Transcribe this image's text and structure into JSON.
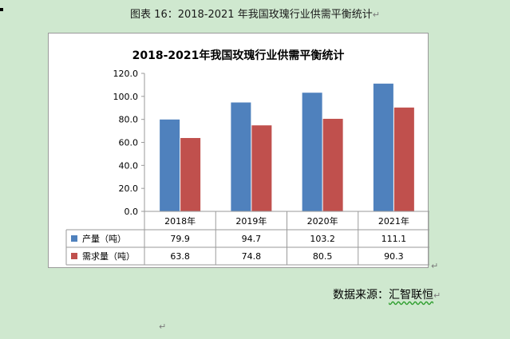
{
  "caption": "图表 16：2018-2021 年我国玫瑰行业供需平衡统计",
  "return_mark": "↵",
  "source_label": "数据来源：",
  "source_name": "汇智联恒",
  "colors": {
    "production": "#4f81bd",
    "demand": "#c0504d",
    "frame": "#9a9a9a"
  },
  "chart_data": {
    "type": "bar",
    "title": "2018-2021年我国玫瑰行业供需平衡统计",
    "categories": [
      "2018年",
      "2019年",
      "2020年",
      "2021年"
    ],
    "series": [
      {
        "name": "产量（吨）",
        "values": [
          79.9,
          94.7,
          103.2,
          111.1
        ],
        "value_labels": [
          "79.9",
          "94.7",
          "103.2",
          "111.1"
        ]
      },
      {
        "name": "需求量（吨）",
        "values": [
          63.8,
          74.8,
          80.5,
          90.3
        ],
        "value_labels": [
          "63.8",
          "74.8",
          "80.5",
          "90.3"
        ]
      }
    ],
    "yticks": [
      "0.0",
      "20.0",
      "40.0",
      "60.0",
      "80.0",
      "100.0",
      "120.0"
    ],
    "ylim": [
      0,
      120
    ],
    "grid": false,
    "legend": "data-table",
    "xlabel": "",
    "ylabel": ""
  }
}
